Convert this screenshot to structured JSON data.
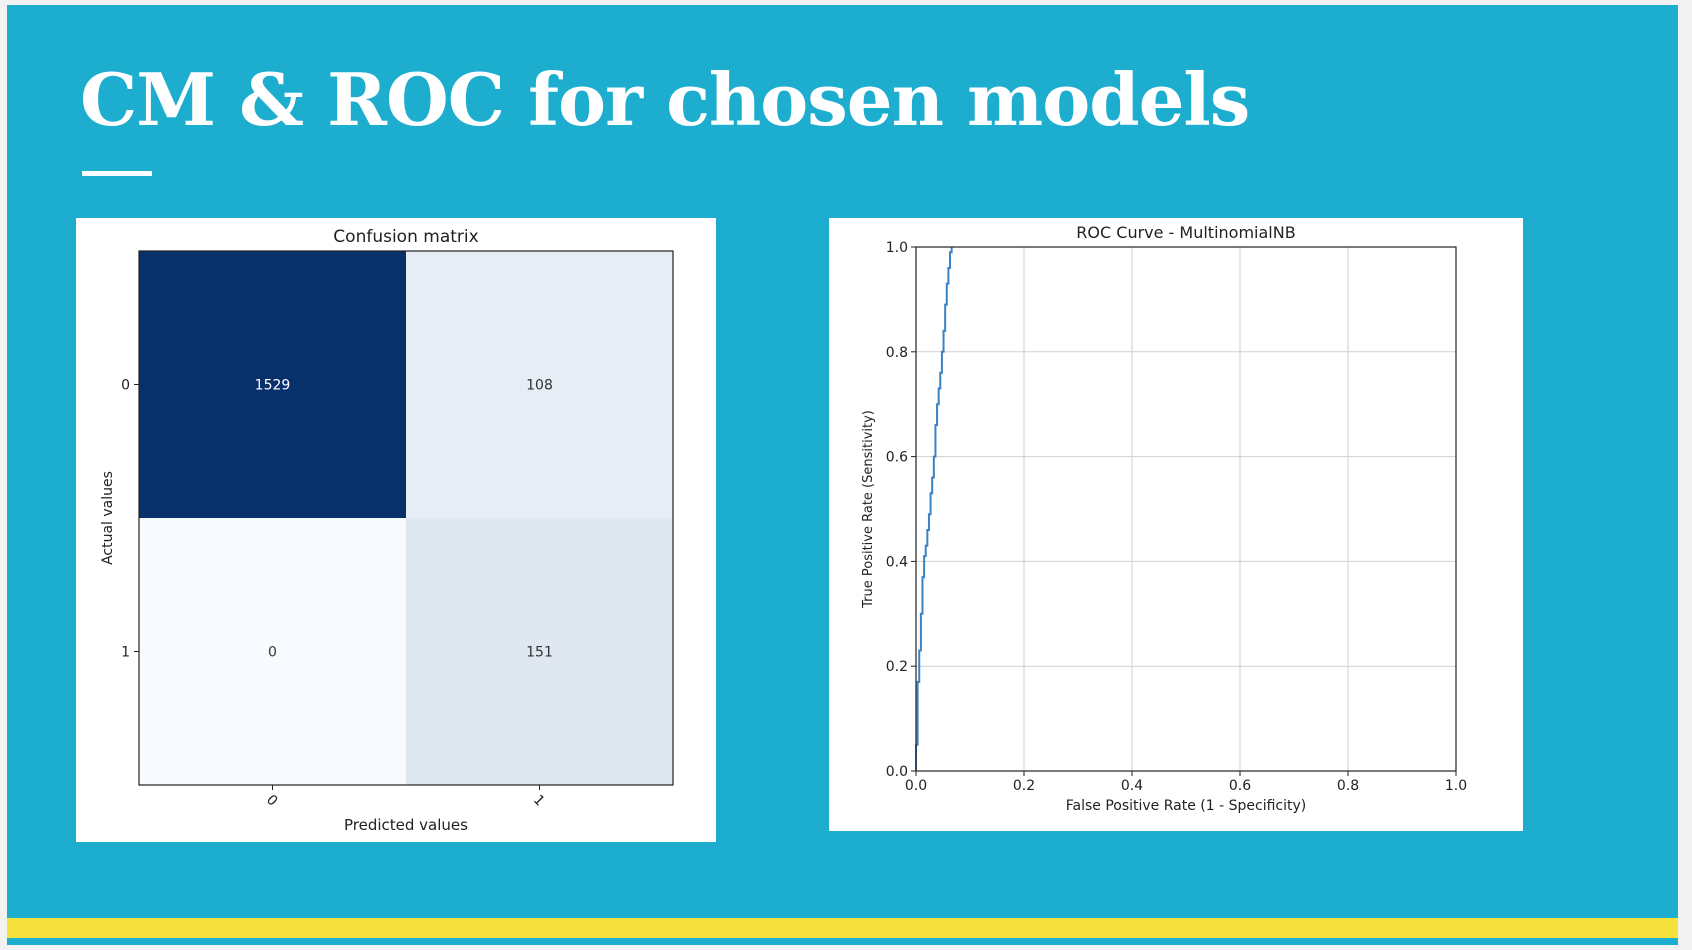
{
  "slide": {
    "title": "CM & ROC for chosen models",
    "colors": {
      "background": "#1dadcf",
      "accent_bar": "#f6e23c",
      "title": "#ffffff"
    }
  },
  "chart_data": [
    {
      "type": "heatmap",
      "title": "Confusion matrix",
      "xlabel": "Predicted values",
      "ylabel": "Actual values",
      "x_ticks": [
        "0",
        "1"
      ],
      "y_ticks": [
        "0",
        "1"
      ],
      "matrix": [
        [
          1529,
          108
        ],
        [
          0,
          151
        ]
      ],
      "colormap": "Blues"
    },
    {
      "type": "line",
      "title": "ROC Curve - MultinomialNB",
      "xlabel": "False Positive Rate (1 - Specificity)",
      "ylabel": "True Positive Rate (Sensitivity)",
      "xlim": [
        0.0,
        1.0
      ],
      "ylim": [
        0.0,
        1.0
      ],
      "x_ticks": [
        "0.0",
        "0.2",
        "0.4",
        "0.6",
        "0.8",
        "1.0"
      ],
      "y_ticks": [
        "0.0",
        "0.2",
        "0.4",
        "0.6",
        "0.8",
        "1.0"
      ],
      "grid": true,
      "line_color": "#3b82c4",
      "series": [
        {
          "x": [
            0.0,
            0.0,
            0.003,
            0.003,
            0.006,
            0.006,
            0.009,
            0.009,
            0.012,
            0.012,
            0.015,
            0.015,
            0.018,
            0.018,
            0.021,
            0.021,
            0.024,
            0.024,
            0.027,
            0.027,
            0.03,
            0.03,
            0.033,
            0.033,
            0.036,
            0.036,
            0.039,
            0.039,
            0.042,
            0.042,
            0.045,
            0.045,
            0.048,
            0.048,
            0.051,
            0.051,
            0.054,
            0.054,
            0.057,
            0.057,
            0.06,
            0.06,
            0.063,
            0.063,
            0.066,
            0.066
          ],
          "y": [
            0.0,
            0.05,
            0.05,
            0.17,
            0.17,
            0.23,
            0.23,
            0.3,
            0.3,
            0.37,
            0.37,
            0.41,
            0.41,
            0.43,
            0.43,
            0.46,
            0.46,
            0.49,
            0.49,
            0.53,
            0.53,
            0.56,
            0.56,
            0.6,
            0.6,
            0.66,
            0.66,
            0.7,
            0.7,
            0.73,
            0.73,
            0.76,
            0.76,
            0.8,
            0.8,
            0.84,
            0.84,
            0.89,
            0.89,
            0.93,
            0.93,
            0.96,
            0.96,
            0.99,
            0.99,
            1.0
          ]
        }
      ]
    }
  ]
}
